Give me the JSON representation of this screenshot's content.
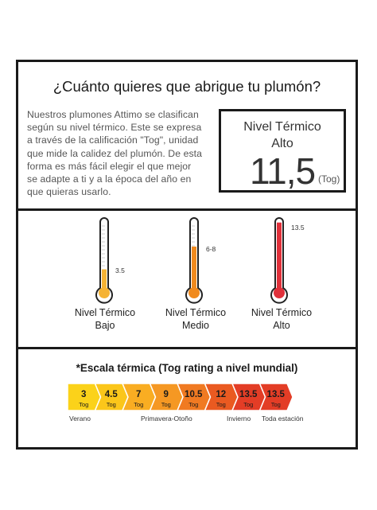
{
  "header": {
    "title": "¿Cuánto quieres que abrigue tu plumón?"
  },
  "description": {
    "lines": [
      "Nuestros plumones Attimo se clasifican",
      "según su nivel térmico. Este se expresa",
      "a través de la calificación \"Tog\", unidad",
      "que mide la calidez del plumón. De esta",
      "forma es más fácil elegir el que mejor",
      "se adapte a ti y a la época del año en",
      "que quieras usarlo."
    ]
  },
  "nivel_box": {
    "line1": "Nivel Térmico",
    "line2": "Alto",
    "value": "11,5",
    "unit": "(Tog)"
  },
  "thermometers": [
    {
      "label_line1": "Nivel Térmico",
      "label_line2": "Bajo",
      "value": "3.5",
      "level": 0.28,
      "color": "#f5b335"
    },
    {
      "label_line1": "Nivel Térmico",
      "label_line2": "Medio",
      "value": "6-8",
      "level": 0.62,
      "color": "#f08a1e"
    },
    {
      "label_line1": "Nivel Térmico",
      "label_line2": "Alto",
      "value": "13.5",
      "level": 0.98,
      "color": "#e0303a"
    }
  ],
  "scale": {
    "title": "*Escala térmica (Tog rating a nivel mundial)",
    "unit": "Tog",
    "segments": [
      {
        "value": "3",
        "color": "#fbd21a"
      },
      {
        "value": "4.5",
        "color": "#fbc61a"
      },
      {
        "value": "7",
        "color": "#f9ad22"
      },
      {
        "value": "9",
        "color": "#f59823"
      },
      {
        "value": "10.5",
        "color": "#f07a22"
      },
      {
        "value": "12",
        "color": "#ea5a21"
      },
      {
        "value": "13.5",
        "color": "#e33d26"
      },
      {
        "value": "13.5",
        "color": "#e33d26"
      }
    ],
    "captions": [
      "Verano",
      "Primavera-Otoño",
      "Invierno",
      "Toda estación"
    ]
  }
}
